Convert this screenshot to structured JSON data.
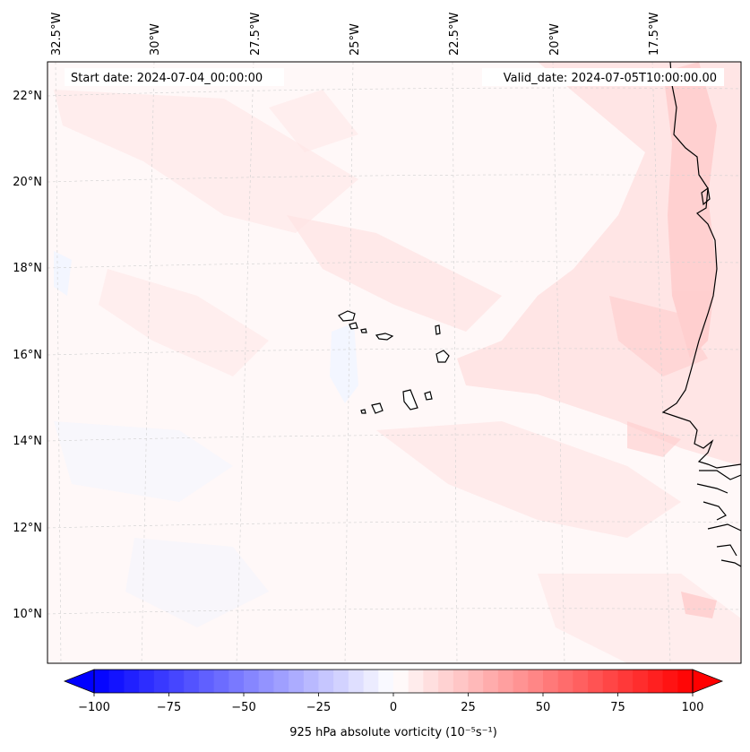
{
  "header": {
    "start_date": "Start date: 2024-07-04_00:00:00",
    "valid_date": "Valid_date: 2024-07-05T10:00:00.00"
  },
  "lon_labels": [
    "32.5°W",
    "30°W",
    "27.5°W",
    "25°W",
    "22.5°W",
    "20°W",
    "17.5°W"
  ],
  "lat_labels": [
    "22°N",
    "20°N",
    "18°N",
    "16°N",
    "14°N",
    "12°N",
    "10°N"
  ],
  "colorbar": {
    "label": "925 hPa absolute vorticity (10⁻⁵s⁻¹)",
    "ticks": [
      "−100",
      "−75",
      "−50",
      "−25",
      "0",
      "25",
      "50",
      "75",
      "100"
    ],
    "min": -100,
    "max": 100,
    "levels": 40,
    "colors": {
      "negative": "#0000ff",
      "zero": "#ffffff",
      "positive": "#ff0000"
    }
  },
  "colors": {
    "coastline": "#000000",
    "grid": "#cfcfcf",
    "field_base": "#fff8f8"
  }
}
